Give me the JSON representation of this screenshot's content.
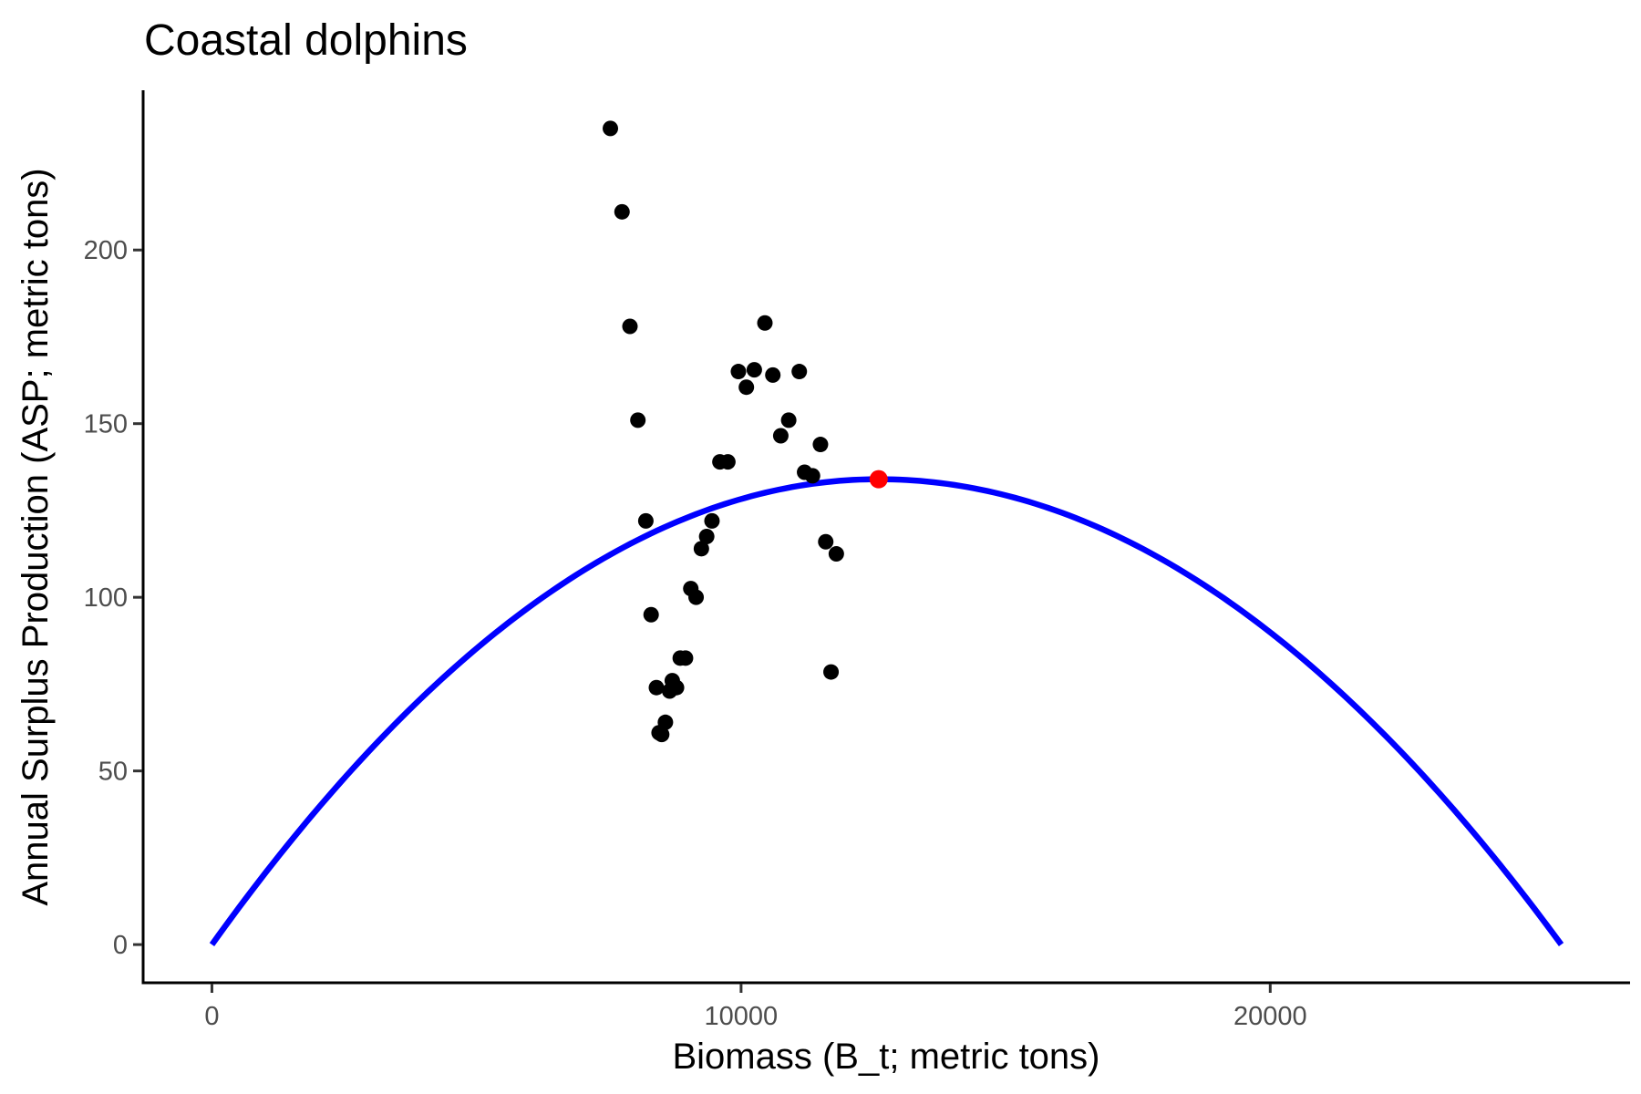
{
  "chart_data": {
    "type": "scatter",
    "title": "Coastal dolphins",
    "xlabel": "Biomass (B_t; metric tons)",
    "ylabel": "Annual Surplus Production (ASP; metric tons)",
    "xlim": [
      -1300,
      26800
    ],
    "ylim": [
      -11,
      246
    ],
    "x_ticks": [
      0,
      10000,
      20000
    ],
    "y_ticks": [
      0,
      50,
      100,
      150,
      200
    ],
    "x_tick_labels": [
      "0",
      "10000",
      "20000"
    ],
    "y_tick_labels": [
      "0",
      "50",
      "100",
      "150",
      "200"
    ],
    "grid": false,
    "legend": "none",
    "series": [
      {
        "type": "scatter",
        "color": "#000000",
        "points": [
          {
            "x": 7530,
            "y": 235
          },
          {
            "x": 7750,
            "y": 211
          },
          {
            "x": 7900,
            "y": 178
          },
          {
            "x": 8050,
            "y": 151
          },
          {
            "x": 8200,
            "y": 122
          },
          {
            "x": 8300,
            "y": 95
          },
          {
            "x": 8400,
            "y": 74
          },
          {
            "x": 8450,
            "y": 61
          },
          {
            "x": 8500,
            "y": 60.5
          },
          {
            "x": 8570,
            "y": 64
          },
          {
            "x": 8650,
            "y": 73
          },
          {
            "x": 8700,
            "y": 76
          },
          {
            "x": 8780,
            "y": 74
          },
          {
            "x": 8850,
            "y": 82.5
          },
          {
            "x": 8950,
            "y": 82.5
          },
          {
            "x": 9050,
            "y": 102.5
          },
          {
            "x": 9150,
            "y": 100
          },
          {
            "x": 9250,
            "y": 114
          },
          {
            "x": 9350,
            "y": 117.5
          },
          {
            "x": 9450,
            "y": 122
          },
          {
            "x": 9600,
            "y": 139
          },
          {
            "x": 9750,
            "y": 139
          },
          {
            "x": 9950,
            "y": 165
          },
          {
            "x": 10100,
            "y": 160.5
          },
          {
            "x": 10250,
            "y": 165.5
          },
          {
            "x": 10450,
            "y": 179
          },
          {
            "x": 10600,
            "y": 164
          },
          {
            "x": 10750,
            "y": 146.5
          },
          {
            "x": 10900,
            "y": 151
          },
          {
            "x": 11100,
            "y": 165
          },
          {
            "x": 11200,
            "y": 136
          },
          {
            "x": 11350,
            "y": 135
          },
          {
            "x": 11500,
            "y": 144
          },
          {
            "x": 11600,
            "y": 116
          },
          {
            "x": 11700,
            "y": 78.5
          },
          {
            "x": 11800,
            "y": 112.5
          }
        ]
      },
      {
        "type": "line",
        "color": "#0000ff",
        "model": "parabola",
        "x_start": 0,
        "x_end": 25500,
        "peak_x": 12600,
        "peak_y": 134
      },
      {
        "type": "scatter",
        "color": "#ff0000",
        "points": [
          {
            "x": 12600,
            "y": 134
          }
        ]
      }
    ]
  }
}
